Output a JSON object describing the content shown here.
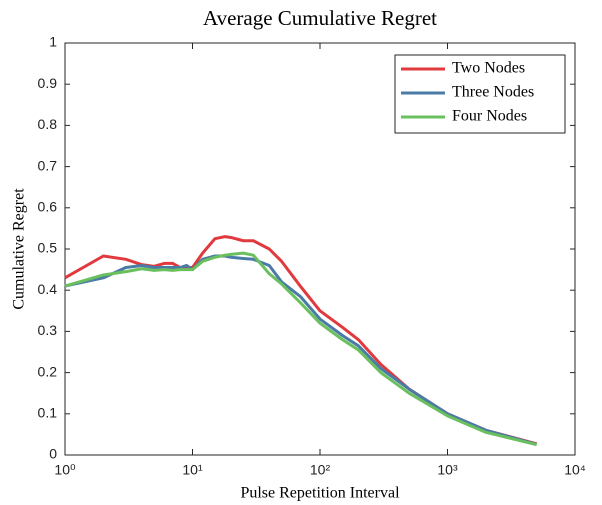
{
  "chart_data": {
    "type": "line",
    "title": "Average Cumulative Regret",
    "xlabel": "Pulse Repetition Interval",
    "ylabel": "Cumulative Regret",
    "xscale": "log",
    "legend": "upper right",
    "x": [
      1,
      2,
      3,
      4,
      5,
      6,
      7,
      8,
      9,
      10,
      12,
      15,
      18,
      20,
      25,
      30,
      40,
      50,
      70,
      100,
      150,
      200,
      300,
      500,
      1000,
      2000,
      5000
    ],
    "series": [
      {
        "name": "Two Nodes",
        "color": "#e0393e",
        "values": [
          0.43,
          0.483,
          0.475,
          0.462,
          0.458,
          0.465,
          0.465,
          0.455,
          0.455,
          0.455,
          0.49,
          0.525,
          0.53,
          0.528,
          0.52,
          0.52,
          0.5,
          0.47,
          0.41,
          0.35,
          0.31,
          0.28,
          0.22,
          0.16,
          0.1,
          0.06,
          0.027
        ]
      },
      {
        "name": "Three Nodes",
        "color": "#4a7ba6",
        "values": [
          0.41,
          0.43,
          0.455,
          0.46,
          0.455,
          0.455,
          0.455,
          0.455,
          0.46,
          0.45,
          0.475,
          0.483,
          0.483,
          0.48,
          0.477,
          0.475,
          0.46,
          0.42,
          0.385,
          0.33,
          0.29,
          0.265,
          0.21,
          0.16,
          0.1,
          0.06,
          0.026
        ]
      },
      {
        "name": "Four Nodes",
        "color": "#6abf5e",
        "values": [
          0.41,
          0.437,
          0.445,
          0.452,
          0.448,
          0.45,
          0.448,
          0.45,
          0.45,
          0.45,
          0.47,
          0.48,
          0.485,
          0.487,
          0.49,
          0.485,
          0.44,
          0.415,
          0.37,
          0.32,
          0.28,
          0.255,
          0.2,
          0.15,
          0.095,
          0.055,
          0.025
        ]
      }
    ],
    "xlim": [
      1,
      10000
    ],
    "xticks": [
      {
        "value": 1,
        "label": "10⁰"
      },
      {
        "value": 10,
        "label": "10¹"
      },
      {
        "value": 100,
        "label": "10²"
      },
      {
        "value": 1000,
        "label": "10³"
      },
      {
        "value": 10000,
        "label": "10⁴"
      }
    ],
    "ylim": [
      0,
      1
    ],
    "yticks": [
      0,
      0.1,
      0.2,
      0.3,
      0.4,
      0.5,
      0.6,
      0.7,
      0.8,
      0.9,
      1
    ],
    "grid": false
  }
}
